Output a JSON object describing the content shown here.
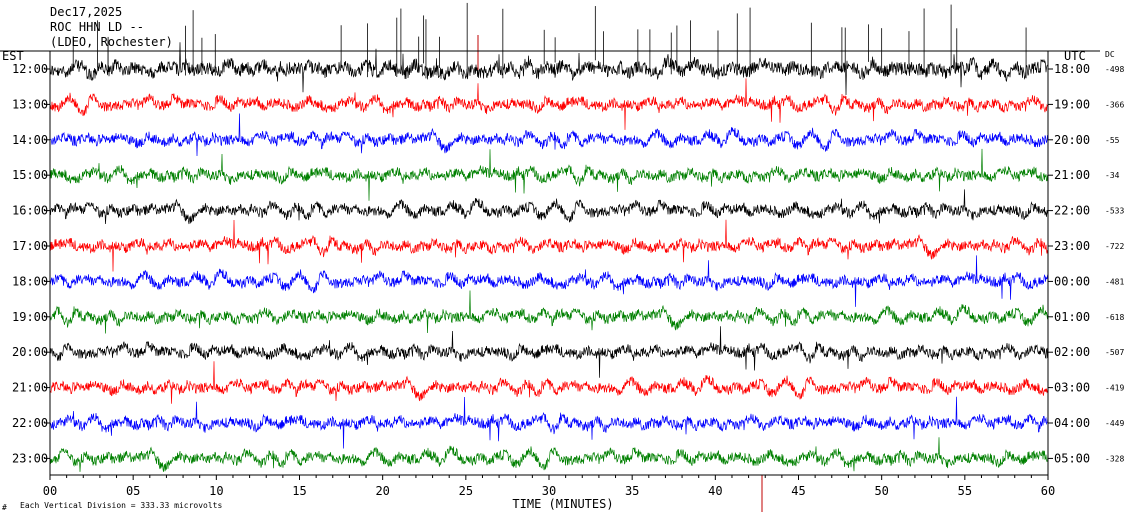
{
  "header": {
    "date": "Dec17,2025",
    "station": "ROC HHN LD --",
    "location": "(LDEO, Rochester)"
  },
  "labels": {
    "left_tz": "EST",
    "right_tz": "UTC",
    "dc": "DC",
    "xlabel": "TIME (MINUTES)",
    "footnote": "Each Vertical Division = 333.33 microvolts",
    "footnote_mark": "#"
  },
  "colors": {
    "cycle": [
      "#000000",
      "#ff0000",
      "#0000ff",
      "#008000"
    ],
    "event": "#c00000"
  },
  "chart_data": {
    "type": "line",
    "title": "",
    "xlabel": "TIME (MINUTES)",
    "xlim": [
      0,
      60
    ],
    "x_ticks": [
      "00",
      "05",
      "10",
      "15",
      "20",
      "25",
      "30",
      "35",
      "40",
      "45",
      "50",
      "55",
      "60"
    ],
    "rows": [
      {
        "est": "12:00",
        "utc": "18:00",
        "dc": "-498",
        "color": "#000000"
      },
      {
        "est": "13:00",
        "utc": "19:00",
        "dc": "-366",
        "color": "#ff0000"
      },
      {
        "est": "14:00",
        "utc": "20:00",
        "dc": "-55",
        "color": "#0000ff"
      },
      {
        "est": "15:00",
        "utc": "21:00",
        "dc": "-34",
        "color": "#008000"
      },
      {
        "est": "16:00",
        "utc": "22:00",
        "dc": "-533",
        "color": "#000000"
      },
      {
        "est": "17:00",
        "utc": "23:00",
        "dc": "-722",
        "color": "#ff0000"
      },
      {
        "est": "18:00",
        "utc": "00:00",
        "dc": "-481",
        "color": "#0000ff"
      },
      {
        "est": "19:00",
        "utc": "01:00",
        "dc": "-618",
        "color": "#008000"
      },
      {
        "est": "20:00",
        "utc": "02:00",
        "dc": "-507",
        "color": "#000000"
      },
      {
        "est": "21:00",
        "utc": "03:00",
        "dc": "-419",
        "color": "#ff0000"
      },
      {
        "est": "22:00",
        "utc": "04:00",
        "dc": "-449",
        "color": "#0000ff"
      },
      {
        "est": "23:00",
        "utc": "05:00",
        "dc": "-328",
        "color": "#008000"
      }
    ]
  }
}
